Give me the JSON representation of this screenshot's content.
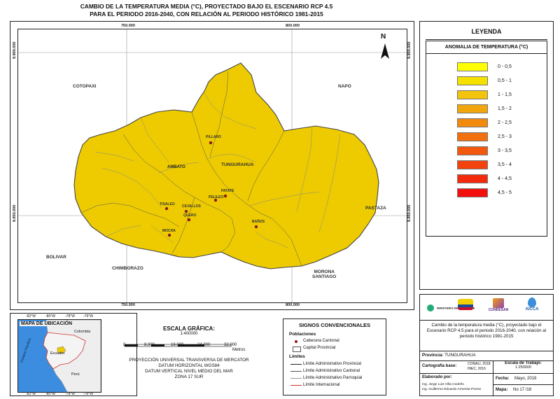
{
  "title": {
    "line1": "CAMBIO DE LA TEMPERATURA MEDIA (°C),  PROYECTADO BAJO EL ESCENARIO RCP 4.5",
    "line2": "PARA EL PERIODO 2016-2040, CON RELACIÓN AL PERIODO HISTÓRICO 1981-2015"
  },
  "map": {
    "coords_top": [
      "750.000",
      "800.000"
    ],
    "coords_bottom": [
      "750.000",
      "800.000"
    ],
    "coords_left": [
      "9.900.000",
      "9.850.000"
    ],
    "coords_right": [
      "9.900.000",
      "9.850.000"
    ],
    "north_label": "N",
    "neighbors": {
      "cotopaxi": "COTOPAXI",
      "napo": "NAPO",
      "pastaza": "PASTAZA",
      "bolivar": "BOLIVAR",
      "chimborazo": "CHIMBORAZO",
      "morona_1": "MORONA",
      "morona_2": "SANTIAGO"
    },
    "province_label": "TUNGURAHUA",
    "capital_label": "AMBATO",
    "towns": {
      "pillaro": "PILLARO",
      "patate": "PATATE",
      "pelileo": "PELILEO",
      "tisaleo": "TISALEO",
      "cevallos": "CEVALLOS",
      "quero": "QUERO",
      "mocha": "MOCHA",
      "banos": "BAÑOS"
    },
    "fill_color": "#EDCB00"
  },
  "legend": {
    "title": "LEYENDA",
    "subtitle": "ANOMALIA DE TEMPERATURA (°C)",
    "classes": [
      {
        "label": "0 - 0,5",
        "color": "#FFFF00"
      },
      {
        "label": "0,5 - 1",
        "color": "#F5E100"
      },
      {
        "label": "1 - 1,5",
        "color": "#F2C40E"
      },
      {
        "label": "1,5 - 2",
        "color": "#F2A60E"
      },
      {
        "label": "2 - 2,5",
        "color": "#F28A0E"
      },
      {
        "label": "2,5 - 3",
        "color": "#F2700E"
      },
      {
        "label": "3 - 3,5",
        "color": "#F2580E"
      },
      {
        "label": "3,5 - 4",
        "color": "#F2420E"
      },
      {
        "label": "4 - 4,5",
        "color": "#F22A0E"
      },
      {
        "label": "4,5 - 5",
        "color": "#F2100E"
      }
    ]
  },
  "location_map": {
    "title": "MAPA DE UBICACIÓN",
    "top_ticks": [
      "-82°W",
      "-80°W",
      "-78°W",
      "-76°W"
    ],
    "bottom_ticks": [
      "-82°W",
      "-80°W",
      "-78°W",
      "-76°W"
    ],
    "colombia": "Colombia",
    "ecuador": "Ecuador",
    "peru": "Perú",
    "ocean": "Océano Pacífico",
    "ocean_color": "#3C8DE0"
  },
  "scale": {
    "title": "ESCALA GRÁFICA:",
    "ratio": "1:400000",
    "ticks": [
      "0",
      "8.000",
      "16.000",
      "24.000",
      "32.000"
    ],
    "unit": "Metros",
    "proj1": "PROYECCIÓN UNIVERSAL TRANSVERSA DE MERCATOR",
    "proj2": "DATUM HORIZONTAL WGS84",
    "proj3": "DATUM VERTICAL NIVEL MEDIO DEL MAR",
    "proj4": "ZONA 17 SUR"
  },
  "signs": {
    "title": "SIGNOS CONVENCIONALES",
    "pob_title": "Poblaciones",
    "cabecera": "Cabecera Cantonal",
    "capital": "Capital Provincial",
    "limites_title": "Límites",
    "lim_prov": "Límite Administrativo Provincial",
    "lim_cant": "Límite Administrativo Cantonal",
    "lim_parr": "Límite Administrativo Parroquial",
    "lim_int": "Límite Internacional"
  },
  "info": {
    "logo_ministerio": "MINISTERIO DEL AMBIENTE",
    "logo_condesan": "CONDESAN",
    "logo_aicca": "AICCA",
    "description": "Cambio de la temperatura media (°C),  proyectado bajo el Escenario RCP 4.5 para el periodo 2016-2040, con relación al periodo histórico 1981-2015",
    "provincia_label": "Provincia:",
    "provincia_value": "TUNGURAHUA",
    "cartografia_label": "Cartografía base:",
    "cartografia_value1": "CONALI, 2018",
    "cartografia_value2": "INEC, 2016",
    "escala_label": "Escala de Trabajo:",
    "escala_value": "1:250000",
    "elaborado_label": "Elaborado por:",
    "elaborado_1": "Ing. Jorge Luis Villa Cedeño",
    "elaborado_2": "Ing. Guillermo Eduardo Armenta Porras",
    "fecha_label": "Fecha:",
    "fecha_value": "Mayo, 2019",
    "mapa_label": "Mapa:",
    "mapa_value": "No 17 /18"
  }
}
